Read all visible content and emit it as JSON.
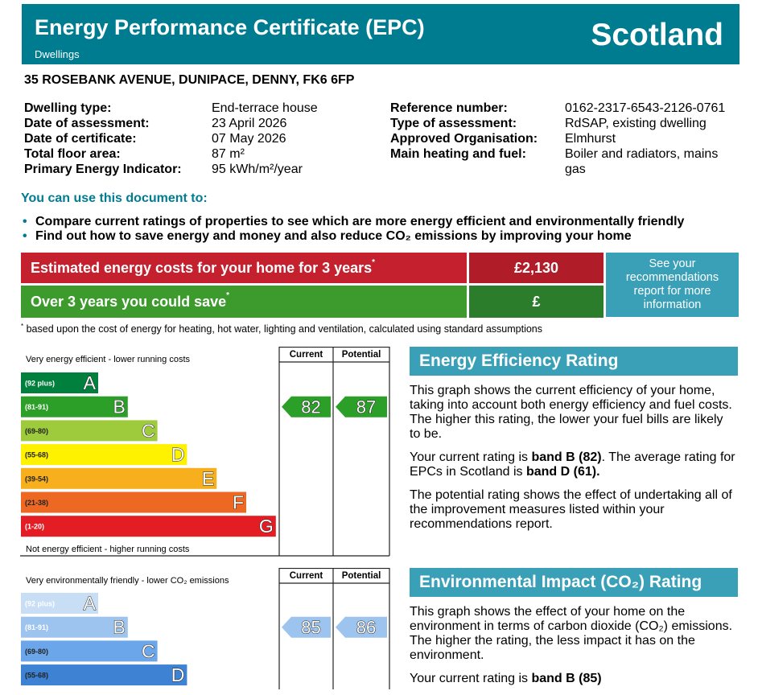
{
  "header": {
    "title": "Energy Performance Certificate (EPC)",
    "subtitle": "Dwellings",
    "region": "Scotland"
  },
  "address": "35 ROSEBANK AVENUE, DUNIPACE, DENNY, FK6 6FP",
  "details": {
    "left": [
      {
        "label": "Dwelling type:",
        "value": "End-terrace house"
      },
      {
        "label": "Date of assessment:",
        "value": "23 April 2026"
      },
      {
        "label": "Date of certificate:",
        "value": "07 May 2026"
      },
      {
        "label": "Total floor area:",
        "value": "87 m²"
      },
      {
        "label": "Primary Energy Indicator:",
        "value": "95 kWh/m²/year"
      }
    ],
    "right": [
      {
        "label": "Reference number:",
        "value": "0162-2317-6543-2126-0761"
      },
      {
        "label": "Type of assessment:",
        "value": "RdSAP, existing dwelling"
      },
      {
        "label": "Approved Organisation:",
        "value": "Elmhurst"
      },
      {
        "label": "Main heating and fuel:",
        "value": "Boiler and radiators, mains gas"
      }
    ]
  },
  "uses": {
    "heading": "You can use this document to:",
    "bullet": "•",
    "items": [
      "Compare current ratings of properties to see which are more energy efficient and environmentally friendly",
      "Find out how to save energy and money and also reduce CO₂ emissions by improving your home"
    ]
  },
  "costs": {
    "rows": [
      {
        "label": "Estimated energy costs for your home for 3 years",
        "mark": "*",
        "value": "£2,130",
        "color": "#c5202e",
        "value_color": "#b01c28"
      },
      {
        "label": "Over 3 years you could save",
        "mark": "*",
        "value": "£",
        "color": "#3d9b2e",
        "value_color": "#2b7d2c"
      }
    ],
    "link": "See your recommendations report for more information"
  },
  "footnote": {
    "mark": "*",
    "text": "based upon the cost of energy for heating, hot water, lighting and ventilation, calculated using standard assumptions"
  },
  "energy_rating": {
    "top_label": "Very energy efficient - lower running costs",
    "bottom_label": "Not energy efficient - higher running costs",
    "columns": [
      "Current",
      "Potential"
    ],
    "bands": [
      {
        "range": "(92 plus)",
        "letter": "A",
        "color": "#007f3d"
      },
      {
        "range": "(81-91)",
        "letter": "B",
        "color": "#2c9f29"
      },
      {
        "range": "(69-80)",
        "letter": "C",
        "color": "#9dcb3c"
      },
      {
        "range": "(55-68)",
        "letter": "D",
        "color": "#fff200"
      },
      {
        "range": "(39-54)",
        "letter": "E",
        "color": "#f7af1d"
      },
      {
        "range": "(21-38)",
        "letter": "F",
        "color": "#ed6823"
      },
      {
        "range": "(1-20)",
        "letter": "G",
        "color": "#e31d23"
      }
    ],
    "current": 82,
    "potential": 87
  },
  "energy_text": {
    "heading": "Energy Efficiency Rating",
    "paragraphs": [
      [
        {
          "text": "This graph shows the current efficiency of your home, taking into account both energy efficiency and fuel costs. The higher this rating, the lower your fuel bills are likely to be.",
          "bold": false
        }
      ],
      [
        {
          "text": "Your current rating is ",
          "bold": false
        },
        {
          "text": "band B (82)",
          "bold": true
        },
        {
          "text": ". The average rating for EPCs in Scotland is ",
          "bold": false
        },
        {
          "text": "band D (61).",
          "bold": true
        }
      ],
      [
        {
          "text": "The potential rating shows the effect of undertaking all of the improvement measures listed within your recommendations report.",
          "bold": false
        }
      ]
    ]
  },
  "environment_rating": {
    "top_label": "Very environmentally friendly - lower CO₂ emissions",
    "columns": [
      "Current",
      "Potential"
    ],
    "bands": [
      {
        "range": "(92 plus)",
        "letter": "A",
        "color": "#c7def5"
      },
      {
        "range": "(81-91)",
        "letter": "B",
        "color": "#9cc4ee"
      },
      {
        "range": "(69-80)",
        "letter": "C",
        "color": "#6ca6ea"
      },
      {
        "range": "(55-68)",
        "letter": "D",
        "color": "#3d82d3"
      }
    ],
    "current": 85,
    "potential": 86
  },
  "environment_text": {
    "heading": "Environmental Impact (CO₂) Rating",
    "paragraphs": [
      [
        {
          "text": "This graph shows the effect of your home on the environment in terms of carbon dioxide (CO₂) emissions. The higher the rating, the less impact it has on the environment.",
          "bold": false
        }
      ],
      [
        {
          "text": "Your current rating is ",
          "bold": false
        },
        {
          "text": "band B (85)",
          "bold": true
        }
      ]
    ]
  }
}
